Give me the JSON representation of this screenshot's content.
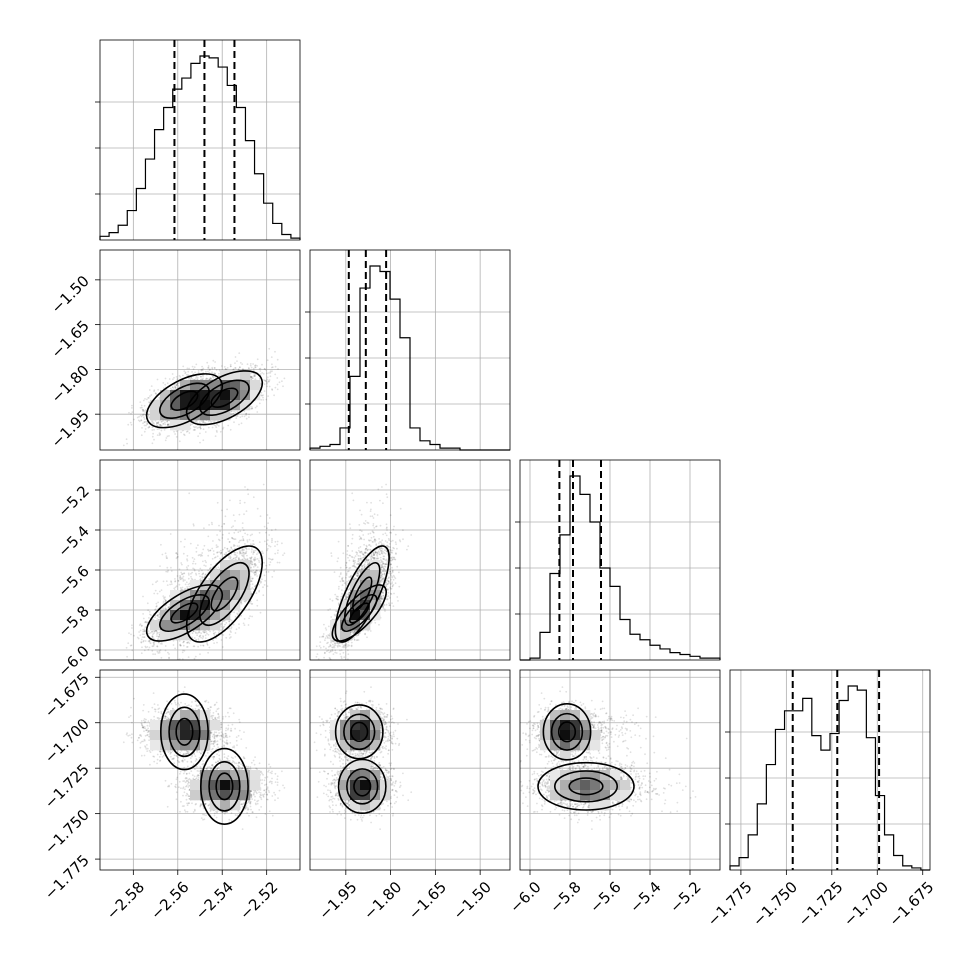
{
  "chart_data": {
    "type": "corner",
    "grid": true,
    "parameters": [
      {
        "range": [
          -2.595,
          -2.505
        ],
        "ticks": [
          -2.58,
          -2.56,
          -2.54,
          -2.52
        ],
        "tick_labels": [
          "−2.58",
          "−2.56",
          "−2.54",
          "−2.52"
        ],
        "quantiles": [
          -2.5615,
          -2.548,
          -2.5345
        ],
        "histogram": {
          "bin_edges_range": [
            -2.595,
            -2.505
          ],
          "counts": [
            2,
            4,
            8,
            16,
            28,
            44,
            60,
            72,
            82,
            88,
            96,
            100,
            99,
            94,
            84,
            72,
            54,
            36,
            20,
            9,
            3,
            1
          ]
        }
      },
      {
        "range": [
          -2.07,
          -1.4
        ],
        "ticks": [
          -1.95,
          -1.8,
          -1.65,
          -1.5
        ],
        "tick_labels": [
          "−1.95",
          "−1.80",
          "−1.65",
          "−1.50"
        ],
        "quantiles": [
          -1.94,
          -1.883,
          -1.815
        ],
        "histogram": {
          "bin_edges_range": [
            -2.07,
            -1.4
          ],
          "counts": [
            1,
            2,
            3,
            12,
            40,
            88,
            100,
            97,
            82,
            61,
            12,
            5,
            3,
            1,
            1,
            0,
            0,
            0,
            0,
            0
          ]
        }
      },
      {
        "range": [
          -6.05,
          -5.05
        ],
        "ticks": [
          -6.0,
          -5.8,
          -5.6,
          -5.4,
          -5.2
        ],
        "tick_labels": [
          "−6.0",
          "−5.8",
          "−5.6",
          "−5.4",
          "−5.2"
        ],
        "quantiles": [
          -5.853,
          -5.785,
          -5.645
        ],
        "histogram": {
          "bin_edges_range": [
            -6.05,
            -5.05
          ],
          "counts": [
            0,
            1,
            15,
            47,
            68,
            100,
            90,
            75,
            50,
            40,
            22,
            14,
            11,
            8,
            6,
            4,
            3,
            2,
            1,
            1
          ]
        }
      },
      {
        "range": [
          -1.781,
          -1.671
        ],
        "ticks": [
          -1.775,
          -1.75,
          -1.725,
          -1.7,
          -1.675
        ],
        "tick_labels": [
          "−1.775",
          "−1.750",
          "−1.725",
          "−1.700",
          "−1.675"
        ],
        "quantiles": [
          -1.7465,
          -1.722,
          -1.699
        ],
        "histogram": {
          "bin_edges_range": [
            -1.781,
            -1.671
          ],
          "counts": [
            2,
            6,
            17,
            32,
            51,
            68,
            77,
            77,
            83,
            65,
            58,
            66,
            82,
            89,
            87,
            64,
            36,
            17,
            7,
            2,
            1,
            0
          ]
        }
      }
    ],
    "modes": [
      {
        "weight": 0.5,
        "mean": [
          -2.557,
          -1.905,
          -5.815,
          -1.705
        ],
        "sd": [
          0.0085,
          0.045,
          0.07,
          0.0065
        ]
      },
      {
        "weight": 0.5,
        "mean": [
          -2.539,
          -1.895,
          -5.72,
          -1.735
        ],
        "sd": [
          0.0085,
          0.045,
          0.12,
          0.0065
        ]
      }
    ],
    "correlations": [
      [
        1.0,
        0.55,
        0.65,
        0.0
      ],
      [
        0.55,
        1.0,
        0.75,
        0.0
      ],
      [
        0.65,
        0.75,
        1.0,
        0.0
      ],
      [
        0.0,
        0.0,
        0.0,
        1.0
      ]
    ]
  }
}
